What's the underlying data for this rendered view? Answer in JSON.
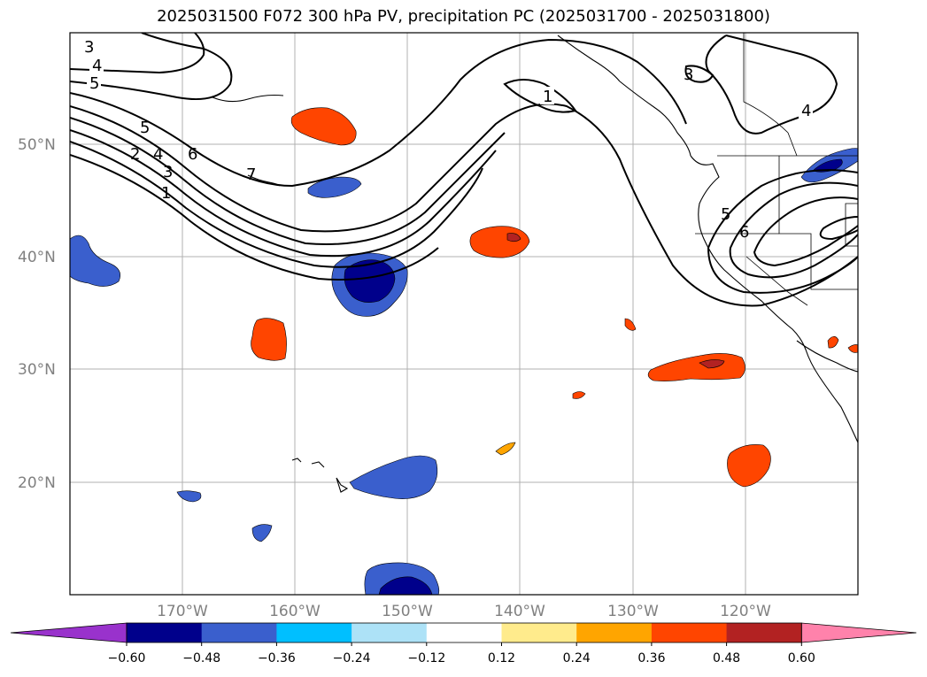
{
  "title": "2025031500 F072 300 hPa PV, precipitation PC (2025031700 - 2025031800)",
  "lat_labels": [
    "50°N",
    "40°N",
    "30°N",
    "20°N"
  ],
  "lon_labels": [
    "170°W",
    "160°W",
    "150°W",
    "140°W",
    "130°W",
    "120°W"
  ],
  "colorbar": {
    "tick_labels": [
      "−0.60",
      "−0.48",
      "−0.36",
      "−0.24",
      "−0.12",
      "0.12",
      "0.24",
      "0.36",
      "0.48",
      "0.60"
    ],
    "colors": [
      "#9932CC",
      "#00008B",
      "#3A5FCD",
      "#00BFFF",
      "#ADE2F7",
      "#FFFFFF",
      "#FFEB8C",
      "#FFA500",
      "#FF4500",
      "#B22222",
      "#FF82AB"
    ]
  },
  "pv_contour_labels": {
    "nw_3": "3",
    "nw_4": "4",
    "nw_5": "5",
    "w_5": "5",
    "w_2": "2",
    "w_4": "4",
    "w_3": "3",
    "w_1": "1",
    "w_6": "6",
    "w_7": "7",
    "ridge_1": "1",
    "ne_3": "3",
    "ne_4": "4",
    "trough_5": "5",
    "trough_6": "6"
  }
}
